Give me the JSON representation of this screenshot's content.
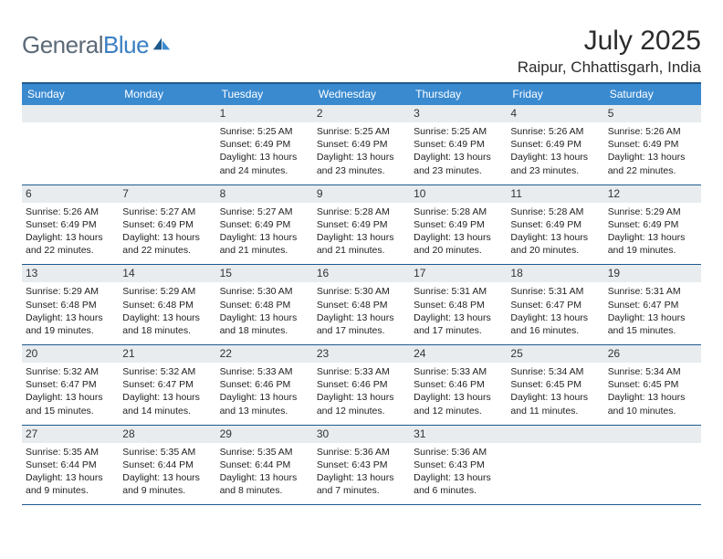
{
  "brand": {
    "name_a": "General",
    "name_b": "Blue"
  },
  "title": "July 2025",
  "location": "Raipur, Chhattisgarh, India",
  "colors": {
    "header_bg": "#3a8ad0",
    "border": "#1e5a8e",
    "band": "#e8ecef",
    "logo_gray": "#5c6a78",
    "logo_blue": "#3a7fc4"
  },
  "day_names": [
    "Sunday",
    "Monday",
    "Tuesday",
    "Wednesday",
    "Thursday",
    "Friday",
    "Saturday"
  ],
  "weeks": [
    [
      null,
      null,
      {
        "n": "1",
        "sr": "5:25 AM",
        "ss": "6:49 PM",
        "dl": "13 hours and 24 minutes."
      },
      {
        "n": "2",
        "sr": "5:25 AM",
        "ss": "6:49 PM",
        "dl": "13 hours and 23 minutes."
      },
      {
        "n": "3",
        "sr": "5:25 AM",
        "ss": "6:49 PM",
        "dl": "13 hours and 23 minutes."
      },
      {
        "n": "4",
        "sr": "5:26 AM",
        "ss": "6:49 PM",
        "dl": "13 hours and 23 minutes."
      },
      {
        "n": "5",
        "sr": "5:26 AM",
        "ss": "6:49 PM",
        "dl": "13 hours and 22 minutes."
      }
    ],
    [
      {
        "n": "6",
        "sr": "5:26 AM",
        "ss": "6:49 PM",
        "dl": "13 hours and 22 minutes."
      },
      {
        "n": "7",
        "sr": "5:27 AM",
        "ss": "6:49 PM",
        "dl": "13 hours and 22 minutes."
      },
      {
        "n": "8",
        "sr": "5:27 AM",
        "ss": "6:49 PM",
        "dl": "13 hours and 21 minutes."
      },
      {
        "n": "9",
        "sr": "5:28 AM",
        "ss": "6:49 PM",
        "dl": "13 hours and 21 minutes."
      },
      {
        "n": "10",
        "sr": "5:28 AM",
        "ss": "6:49 PM",
        "dl": "13 hours and 20 minutes."
      },
      {
        "n": "11",
        "sr": "5:28 AM",
        "ss": "6:49 PM",
        "dl": "13 hours and 20 minutes."
      },
      {
        "n": "12",
        "sr": "5:29 AM",
        "ss": "6:49 PM",
        "dl": "13 hours and 19 minutes."
      }
    ],
    [
      {
        "n": "13",
        "sr": "5:29 AM",
        "ss": "6:48 PM",
        "dl": "13 hours and 19 minutes."
      },
      {
        "n": "14",
        "sr": "5:29 AM",
        "ss": "6:48 PM",
        "dl": "13 hours and 18 minutes."
      },
      {
        "n": "15",
        "sr": "5:30 AM",
        "ss": "6:48 PM",
        "dl": "13 hours and 18 minutes."
      },
      {
        "n": "16",
        "sr": "5:30 AM",
        "ss": "6:48 PM",
        "dl": "13 hours and 17 minutes."
      },
      {
        "n": "17",
        "sr": "5:31 AM",
        "ss": "6:48 PM",
        "dl": "13 hours and 17 minutes."
      },
      {
        "n": "18",
        "sr": "5:31 AM",
        "ss": "6:47 PM",
        "dl": "13 hours and 16 minutes."
      },
      {
        "n": "19",
        "sr": "5:31 AM",
        "ss": "6:47 PM",
        "dl": "13 hours and 15 minutes."
      }
    ],
    [
      {
        "n": "20",
        "sr": "5:32 AM",
        "ss": "6:47 PM",
        "dl": "13 hours and 15 minutes."
      },
      {
        "n": "21",
        "sr": "5:32 AM",
        "ss": "6:47 PM",
        "dl": "13 hours and 14 minutes."
      },
      {
        "n": "22",
        "sr": "5:33 AM",
        "ss": "6:46 PM",
        "dl": "13 hours and 13 minutes."
      },
      {
        "n": "23",
        "sr": "5:33 AM",
        "ss": "6:46 PM",
        "dl": "13 hours and 12 minutes."
      },
      {
        "n": "24",
        "sr": "5:33 AM",
        "ss": "6:46 PM",
        "dl": "13 hours and 12 minutes."
      },
      {
        "n": "25",
        "sr": "5:34 AM",
        "ss": "6:45 PM",
        "dl": "13 hours and 11 minutes."
      },
      {
        "n": "26",
        "sr": "5:34 AM",
        "ss": "6:45 PM",
        "dl": "13 hours and 10 minutes."
      }
    ],
    [
      {
        "n": "27",
        "sr": "5:35 AM",
        "ss": "6:44 PM",
        "dl": "13 hours and 9 minutes."
      },
      {
        "n": "28",
        "sr": "5:35 AM",
        "ss": "6:44 PM",
        "dl": "13 hours and 9 minutes."
      },
      {
        "n": "29",
        "sr": "5:35 AM",
        "ss": "6:44 PM",
        "dl": "13 hours and 8 minutes."
      },
      {
        "n": "30",
        "sr": "5:36 AM",
        "ss": "6:43 PM",
        "dl": "13 hours and 7 minutes."
      },
      {
        "n": "31",
        "sr": "5:36 AM",
        "ss": "6:43 PM",
        "dl": "13 hours and 6 minutes."
      },
      null,
      null
    ]
  ],
  "labels": {
    "sunrise": "Sunrise:",
    "sunset": "Sunset:",
    "daylight": "Daylight:"
  }
}
